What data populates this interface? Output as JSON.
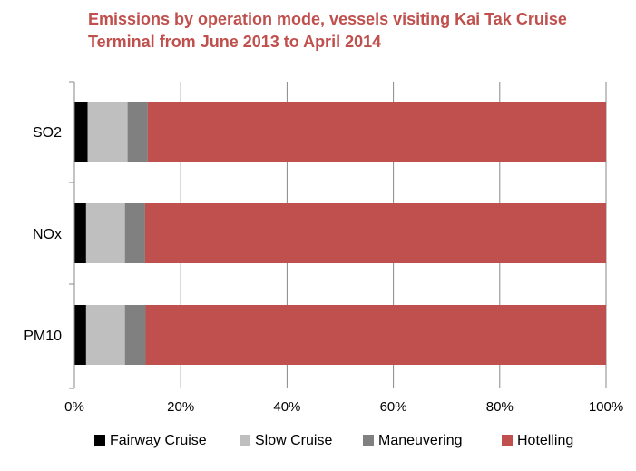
{
  "chart_data": {
    "type": "bar",
    "orientation": "horizontal",
    "stacked": true,
    "title_lines": [
      "Emissions by operation mode, vessels visiting Kai Tak Cruise",
      "Terminal from June 2013 to April 2014"
    ],
    "categories": [
      "SO2",
      "NOx",
      "PM10"
    ],
    "series": [
      {
        "name": "Fairway Cruise",
        "color": "#000000",
        "values": [
          2.5,
          2.2,
          2.2
        ]
      },
      {
        "name": "Slow Cruise",
        "color": "#bfbfbf",
        "values": [
          7.5,
          7.3,
          7.3
        ]
      },
      {
        "name": "Maneuvering",
        "color": "#808080",
        "values": [
          3.8,
          3.8,
          3.9
        ]
      },
      {
        "name": "Hotelling",
        "color": "#c0504d",
        "values": [
          86.2,
          86.7,
          86.6
        ]
      }
    ],
    "xlim": [
      0,
      100
    ],
    "x_ticks": [
      0,
      20,
      40,
      60,
      80,
      100
    ],
    "x_tick_labels": [
      "0%",
      "20%",
      "40%",
      "60%",
      "80%",
      "100%"
    ],
    "grid": "vertical",
    "legend_position": "bottom"
  }
}
